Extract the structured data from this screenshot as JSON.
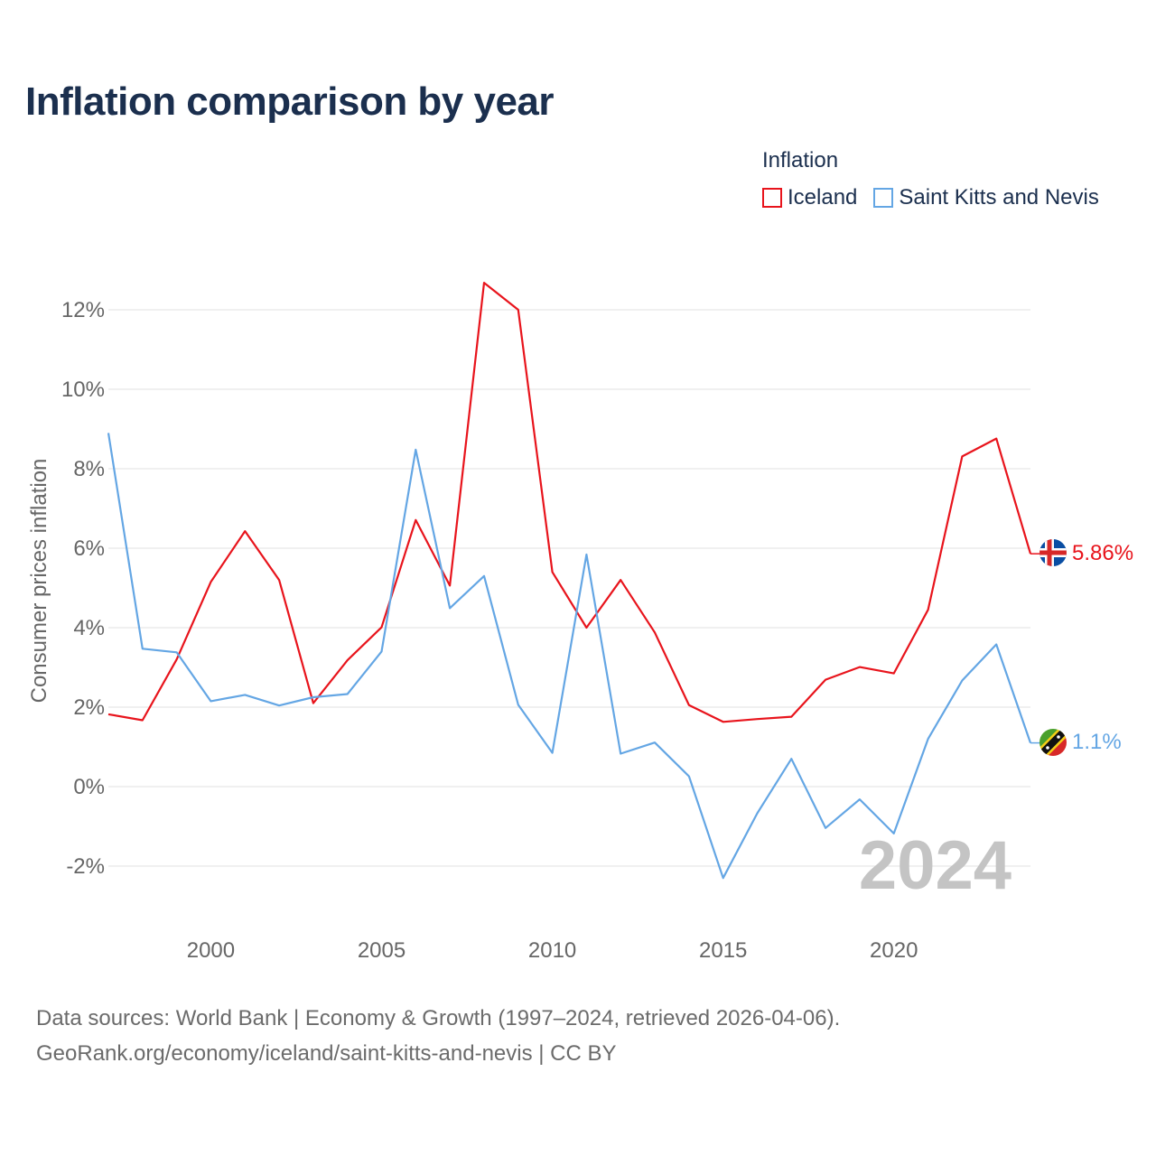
{
  "title": "Inflation comparison by year",
  "legend": {
    "title": "Inflation",
    "items": [
      {
        "label": "Iceland",
        "color": "#e8141c"
      },
      {
        "label": "Saint Kitts and Nevis",
        "color": "#64a6e4"
      }
    ]
  },
  "chart_data": {
    "type": "line",
    "title": "Inflation comparison by year",
    "xlabel": "",
    "ylabel": "Consumer prices inflation",
    "xlim": [
      1997,
      2024
    ],
    "ylim": [
      -3,
      13
    ],
    "x_ticks": [
      2000,
      2005,
      2010,
      2015,
      2020
    ],
    "y_ticks": [
      -2,
      0,
      2,
      4,
      6,
      8,
      10,
      12
    ],
    "y_tick_labels": [
      "-2%",
      "0%",
      "2%",
      "4%",
      "6%",
      "8%",
      "10%",
      "12%"
    ],
    "grid": "horizontal",
    "watermark_year": "2024",
    "x": [
      1997,
      1998,
      1999,
      2000,
      2001,
      2002,
      2003,
      2004,
      2005,
      2006,
      2007,
      2008,
      2009,
      2010,
      2011,
      2012,
      2013,
      2014,
      2015,
      2016,
      2017,
      2018,
      2019,
      2020,
      2021,
      2022,
      2023,
      2024
    ],
    "series": [
      {
        "name": "Iceland",
        "color": "#e8141c",
        "end_label": "5.86%",
        "flag_icon": "iceland-flag-icon",
        "values": [
          1.82,
          1.67,
          3.2,
          5.15,
          6.43,
          5.2,
          2.1,
          3.18,
          4.01,
          6.71,
          5.06,
          12.68,
          12.0,
          5.4,
          4.0,
          5.2,
          3.88,
          2.05,
          1.63,
          1.7,
          1.76,
          2.69,
          3.01,
          2.85,
          4.45,
          8.31,
          8.76,
          5.86
        ]
      },
      {
        "name": "Saint Kitts and Nevis",
        "color": "#64a6e4",
        "end_label": "1.1%",
        "flag_icon": "saint-kitts-flag-icon",
        "values": [
          8.9,
          3.47,
          3.38,
          2.15,
          2.31,
          2.04,
          2.25,
          2.33,
          3.4,
          8.48,
          4.49,
          5.3,
          2.06,
          0.85,
          5.84,
          0.83,
          1.11,
          0.26,
          -2.3,
          -0.67,
          0.7,
          -1.04,
          -0.32,
          -1.18,
          1.2,
          2.67,
          3.58,
          1.1
        ]
      }
    ]
  },
  "source": {
    "line1": "Data sources: World Bank | Economy & Growth (1997–2024, retrieved 2026-04-06).",
    "line2": "GeoRank.org/economy/iceland/saint-kitts-and-nevis | CC BY"
  }
}
